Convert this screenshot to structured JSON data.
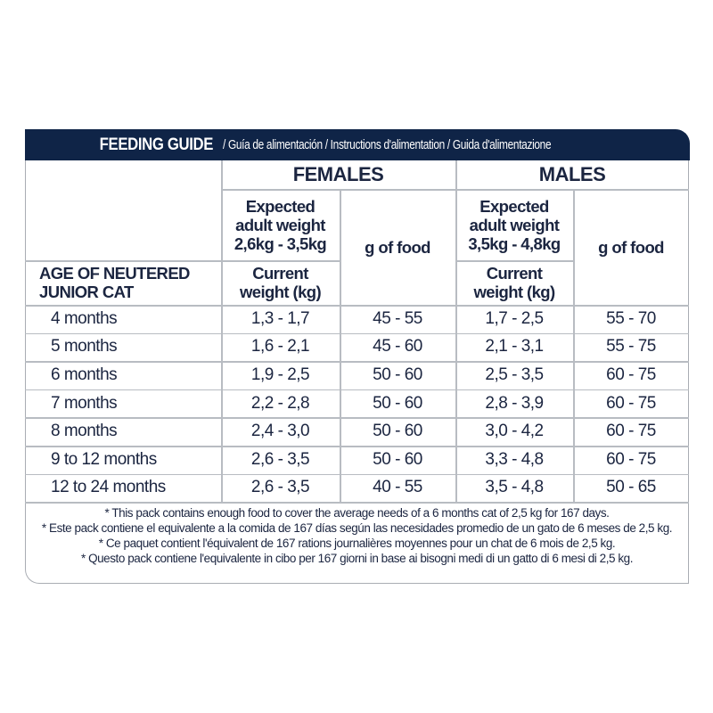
{
  "title": {
    "main": "FEEDING GUIDE",
    "sub": " / Guía de alimentación / Instructions d'alimentation / Guida d'alimentazione"
  },
  "colors": {
    "header_bg": "#0f2447",
    "text": "#1b2540",
    "grid_line": "#b8bcc2"
  },
  "table": {
    "groups": [
      "FEMALES",
      "MALES"
    ],
    "age_header": "AGE OF NEUTERED\nJUNIOR CAT",
    "females": {
      "expected": "Expected\nadult weight\n2,6kg - 3,5kg",
      "current": "Current\nweight (kg)",
      "food": "g of food"
    },
    "males": {
      "expected": "Expected\nadult weight\n3,5kg - 4,8kg",
      "current": "Current\nweight (kg)",
      "food": "g of food"
    },
    "rows": [
      {
        "age": "4 months",
        "f_weight": "1,3 - 1,7",
        "f_food": "45 - 55",
        "m_weight": "1,7 - 2,5",
        "m_food": "55 - 70"
      },
      {
        "age": "5 months",
        "f_weight": "1,6 - 2,1",
        "f_food": "45 - 60",
        "m_weight": "2,1 - 3,1",
        "m_food": "55 - 75"
      },
      {
        "age": "6 months",
        "f_weight": "1,9 - 2,5",
        "f_food": "50 - 60",
        "m_weight": "2,5 - 3,5",
        "m_food": "60 - 75"
      },
      {
        "age": "7 months",
        "f_weight": "2,2 - 2,8",
        "f_food": "50 - 60",
        "m_weight": "2,8 - 3,9",
        "m_food": "60 - 75"
      },
      {
        "age": "8 months",
        "f_weight": "2,4 - 3,0",
        "f_food": "50 - 60",
        "m_weight": "3,0 - 4,2",
        "m_food": "60 - 75"
      },
      {
        "age": "9 to 12 months",
        "f_weight": "2,6 - 3,5",
        "f_food": "50 - 60",
        "m_weight": "3,3 - 4,8",
        "m_food": "60 - 75"
      },
      {
        "age": "12 to 24 months",
        "f_weight": "2,6 - 3,5",
        "f_food": "40 - 55",
        "m_weight": "3,5 - 4,8",
        "m_food": "50 - 65"
      }
    ]
  },
  "notes": [
    "* This pack contains enough food to cover the average needs of a  6 months cat of 2,5 kg for 167 days.",
    "* Este pack contiene el equivalente a la comida de 167 días según las necesidades promedio de un gato de 6 meses de 2,5 kg.",
    "* Ce paquet contient l'équivalent de 167 rations journalières moyennes pour un chat de 6 mois de 2,5 kg.",
    "* Questo pack contiene l'equivalente in cibo per 167 giorni in base ai bisogni medi di un gatto di 6 mesi di 2,5 kg."
  ]
}
